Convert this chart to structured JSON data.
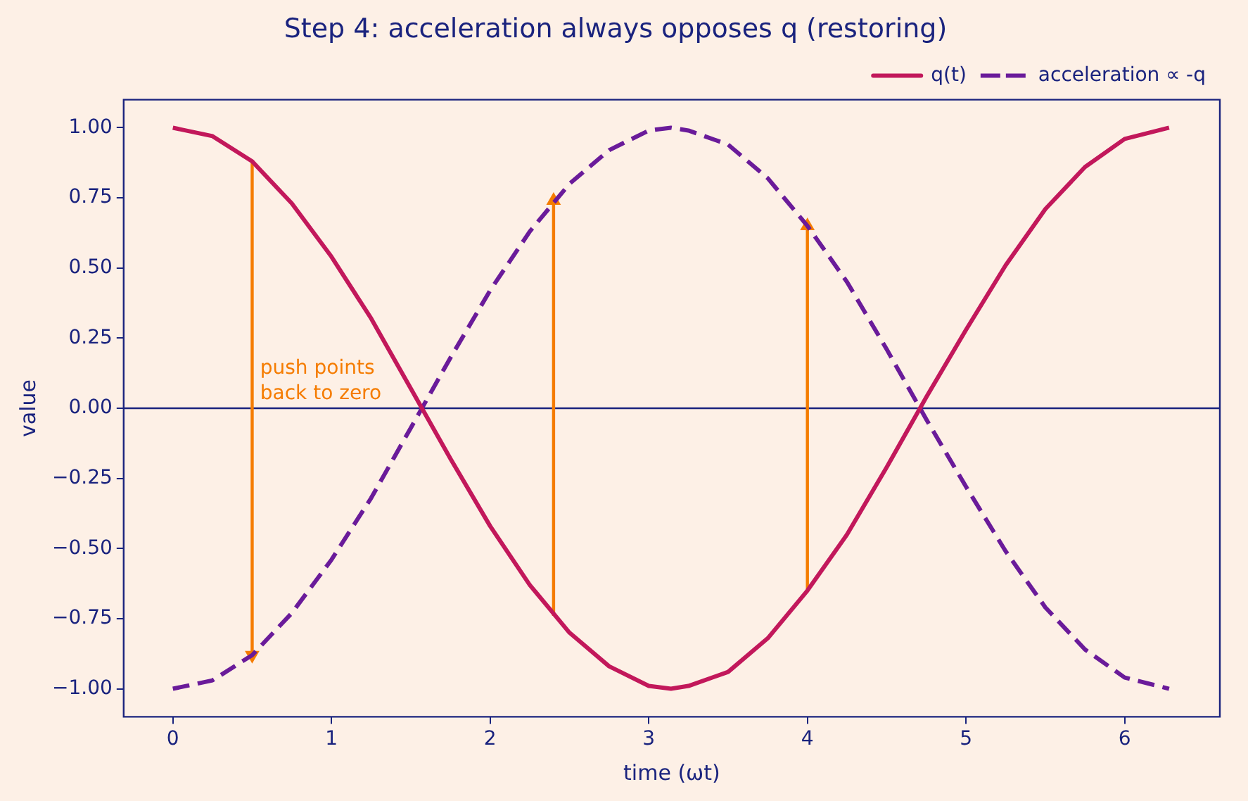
{
  "chart_data": {
    "type": "line",
    "title": "Step 4: acceleration always opposes q (restoring)",
    "xlabel": "time (ωt)",
    "ylabel": "value",
    "xlim": [
      -0.31,
      6.6
    ],
    "xticks": [
      0,
      1,
      2,
      3,
      4,
      5,
      6
    ],
    "ylim": [
      -1.1,
      1.1
    ],
    "yticks": [
      {
        "value": -1,
        "label": "−1.00"
      },
      {
        "value": -0.75,
        "label": "−0.75"
      },
      {
        "value": -0.5,
        "label": "−0.50"
      },
      {
        "value": -0.25,
        "label": "−0.25"
      },
      {
        "value": 0,
        "label": "0.00"
      },
      {
        "value": 0.25,
        "label": "0.25"
      },
      {
        "value": 0.5,
        "label": "0.50"
      },
      {
        "value": 0.75,
        "label": "0.75"
      },
      {
        "value": 1,
        "label": "1.00"
      }
    ],
    "grid": false,
    "legend": "top right",
    "marker": "none",
    "ref_lines": [
      {
        "axis": "y",
        "value": 0,
        "color": "#1a237e"
      }
    ],
    "annotations": [
      {
        "text": "push points\nback to zero",
        "x": 0.55,
        "y": 0
      }
    ],
    "series": [
      {
        "name": "q(t)",
        "color": "#c2185b",
        "line_style": "solid",
        "x": [
          0,
          0.25,
          0.5,
          0.75,
          1,
          1.25,
          1.5,
          1.75,
          2,
          2.25,
          2.5,
          2.75,
          3,
          3.14,
          3.25,
          3.5,
          3.75,
          4,
          4.25,
          4.5,
          4.75,
          5,
          5.25,
          5.5,
          5.75,
          6,
          6.28
        ],
        "values": [
          1,
          0.97,
          0.88,
          0.73,
          0.54,
          0.32,
          0.07,
          -0.18,
          -0.42,
          -0.63,
          -0.8,
          -0.92,
          -0.99,
          -1,
          -0.99,
          -0.94,
          -0.82,
          -0.65,
          -0.45,
          -0.21,
          0.04,
          0.28,
          0.51,
          0.71,
          0.86,
          0.96,
          1
        ]
      },
      {
        "name": "acceleration ∝ -q",
        "color": "#6a1b9a",
        "line_style": "dashed",
        "x": [
          0,
          0.25,
          0.5,
          0.75,
          1,
          1.25,
          1.5,
          1.75,
          2,
          2.25,
          2.5,
          2.75,
          3,
          3.14,
          3.25,
          3.5,
          3.75,
          4,
          4.25,
          4.5,
          4.75,
          5,
          5.25,
          5.5,
          5.75,
          6,
          6.28
        ],
        "values": [
          -1,
          -0.97,
          -0.88,
          -0.73,
          -0.54,
          -0.32,
          -0.07,
          0.18,
          0.42,
          0.63,
          0.8,
          0.92,
          0.99,
          1,
          0.99,
          0.94,
          0.82,
          0.65,
          0.45,
          0.21,
          -0.04,
          -0.28,
          -0.51,
          -0.71,
          -0.86,
          -0.96,
          -1
        ]
      },
      {
        "color": "#f57c00",
        "line_style": "solid",
        "marker": "triangle",
        "x": [
          0.5,
          0.5
        ],
        "values": [
          0.88,
          -0.88
        ]
      },
      {
        "color": "#f57c00",
        "line_style": "solid",
        "marker": "triangle",
        "x": [
          2.4,
          2.4
        ],
        "values": [
          -0.74,
          0.74
        ]
      },
      {
        "color": "#f57c00",
        "line_style": "solid",
        "marker": "triangle",
        "x": [
          4,
          4
        ],
        "values": [
          -0.65,
          0.65
        ]
      }
    ]
  }
}
